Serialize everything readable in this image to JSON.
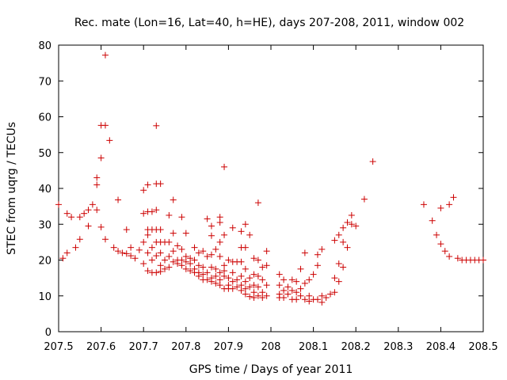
{
  "chart_data": {
    "type": "scatter",
    "title": "Rec. mate (Lon=16, Lat=40, h=HE), days 207-208, 2011, window 002",
    "xlabel": "GPS time / Days of year 2011",
    "ylabel": "STEC from uqrg / TECUs",
    "xlim": [
      207.5,
      208.5
    ],
    "ylim": [
      0,
      80
    ],
    "xticks": [
      207.5,
      207.6,
      207.7,
      207.8,
      207.9,
      208,
      208.1,
      208.2,
      208.3,
      208.4,
      208.5
    ],
    "xtick_labels": [
      "207.5",
      "207.6",
      "207.7",
      "207.8",
      "207.9",
      "208",
      "208.1",
      "208.2",
      "208.3",
      "208.4",
      "208.5"
    ],
    "yticks": [
      0,
      10,
      20,
      30,
      40,
      50,
      60,
      70,
      80
    ],
    "ytick_labels": [
      "0",
      "10",
      "20",
      "30",
      "40",
      "50",
      "60",
      "70",
      "80"
    ],
    "marker": "+",
    "color": "#cc0000",
    "series": [
      {
        "name": "STEC",
        "points": [
          [
            207.5,
            35.5
          ],
          [
            207.51,
            20.5
          ],
          [
            207.52,
            33.0
          ],
          [
            207.52,
            22.0
          ],
          [
            207.53,
            32.0
          ],
          [
            207.54,
            23.5
          ],
          [
            207.55,
            32.0
          ],
          [
            207.55,
            25.8
          ],
          [
            207.56,
            33.0
          ],
          [
            207.57,
            29.5
          ],
          [
            207.57,
            34.0
          ],
          [
            207.58,
            35.5
          ],
          [
            207.59,
            43.0
          ],
          [
            207.59,
            41.0
          ],
          [
            207.59,
            34.0
          ],
          [
            207.6,
            57.6
          ],
          [
            207.6,
            48.5
          ],
          [
            207.6,
            29.2
          ],
          [
            207.61,
            57.6
          ],
          [
            207.61,
            77.2
          ],
          [
            207.61,
            25.8
          ],
          [
            207.62,
            53.4
          ],
          [
            207.63,
            23.5
          ],
          [
            207.64,
            36.8
          ],
          [
            207.64,
            22.5
          ],
          [
            207.65,
            22.0
          ],
          [
            207.66,
            28.5
          ],
          [
            207.66,
            21.8
          ],
          [
            207.67,
            23.5
          ],
          [
            207.67,
            21.2
          ],
          [
            207.68,
            20.5
          ],
          [
            207.69,
            22.8
          ],
          [
            207.7,
            33.0
          ],
          [
            207.7,
            39.5
          ],
          [
            207.7,
            25.0
          ],
          [
            207.7,
            19.0
          ],
          [
            207.71,
            41.0
          ],
          [
            207.71,
            33.5
          ],
          [
            207.71,
            28.5
          ],
          [
            207.71,
            27.0
          ],
          [
            207.71,
            22.0
          ],
          [
            207.71,
            17.0
          ],
          [
            207.72,
            33.5
          ],
          [
            207.72,
            28.5
          ],
          [
            207.72,
            23.5
          ],
          [
            207.72,
            20.0
          ],
          [
            207.72,
            16.5
          ],
          [
            207.73,
            57.5
          ],
          [
            207.73,
            41.3
          ],
          [
            207.73,
            34.0
          ],
          [
            207.73,
            28.5
          ],
          [
            207.73,
            25.0
          ],
          [
            207.73,
            21.2
          ],
          [
            207.73,
            16.5
          ],
          [
            207.74,
            41.3
          ],
          [
            207.74,
            28.5
          ],
          [
            207.74,
            25.0
          ],
          [
            207.74,
            22.0
          ],
          [
            207.74,
            18.5
          ],
          [
            207.74,
            16.8
          ],
          [
            207.75,
            25.0
          ],
          [
            207.75,
            20.0
          ],
          [
            207.75,
            17.5
          ],
          [
            207.76,
            32.5
          ],
          [
            207.76,
            25.0
          ],
          [
            207.76,
            21.0
          ],
          [
            207.76,
            18.0
          ],
          [
            207.77,
            36.8
          ],
          [
            207.77,
            27.5
          ],
          [
            207.77,
            22.5
          ],
          [
            207.77,
            19.5
          ],
          [
            207.78,
            24.0
          ],
          [
            207.78,
            20.0
          ],
          [
            207.78,
            19.0
          ],
          [
            207.79,
            32.0
          ],
          [
            207.79,
            23.0
          ],
          [
            207.79,
            20.0
          ],
          [
            207.79,
            18.5
          ],
          [
            207.8,
            27.5
          ],
          [
            207.8,
            21.0
          ],
          [
            207.8,
            19.5
          ],
          [
            207.8,
            17.5
          ],
          [
            207.81,
            20.5
          ],
          [
            207.81,
            19.0
          ],
          [
            207.81,
            17.0
          ],
          [
            207.82,
            23.5
          ],
          [
            207.82,
            20.0
          ],
          [
            207.82,
            17.5
          ],
          [
            207.82,
            16.5
          ],
          [
            207.83,
            22.0
          ],
          [
            207.83,
            18.5
          ],
          [
            207.83,
            16.5
          ],
          [
            207.83,
            15.5
          ],
          [
            207.84,
            22.5
          ],
          [
            207.84,
            18.0
          ],
          [
            207.84,
            16.0
          ],
          [
            207.84,
            14.5
          ],
          [
            207.85,
            31.5
          ],
          [
            207.85,
            21.0
          ],
          [
            207.85,
            16.5
          ],
          [
            207.85,
            14.5
          ],
          [
            207.86,
            29.5
          ],
          [
            207.86,
            26.8
          ],
          [
            207.86,
            21.5
          ],
          [
            207.86,
            18.0
          ],
          [
            207.86,
            15.0
          ],
          [
            207.86,
            14.0
          ],
          [
            207.87,
            23.0
          ],
          [
            207.87,
            17.5
          ],
          [
            207.87,
            15.5
          ],
          [
            207.87,
            13.5
          ],
          [
            207.88,
            32.0
          ],
          [
            207.88,
            30.5
          ],
          [
            207.88,
            25.0
          ],
          [
            207.88,
            21.0
          ],
          [
            207.88,
            16.5
          ],
          [
            207.88,
            14.5
          ],
          [
            207.88,
            13.0
          ],
          [
            207.89,
            46.0
          ],
          [
            207.89,
            27.0
          ],
          [
            207.89,
            18.5
          ],
          [
            207.89,
            17.0
          ],
          [
            207.89,
            15.5
          ],
          [
            207.89,
            12.0
          ],
          [
            207.9,
            20.0
          ],
          [
            207.9,
            15.0
          ],
          [
            207.9,
            13.0
          ],
          [
            207.9,
            12.0
          ],
          [
            207.91,
            29.0
          ],
          [
            207.91,
            19.5
          ],
          [
            207.91,
            16.5
          ],
          [
            207.91,
            14.0
          ],
          [
            207.91,
            12.0
          ],
          [
            207.92,
            19.5
          ],
          [
            207.92,
            14.5
          ],
          [
            207.92,
            12.5
          ],
          [
            207.93,
            28.0
          ],
          [
            207.93,
            23.5
          ],
          [
            207.93,
            19.5
          ],
          [
            207.93,
            15.5
          ],
          [
            207.93,
            13.0
          ],
          [
            207.93,
            11.5
          ],
          [
            207.94,
            30.0
          ],
          [
            207.94,
            23.5
          ],
          [
            207.94,
            17.5
          ],
          [
            207.94,
            14.0
          ],
          [
            207.94,
            12.0
          ],
          [
            207.94,
            10.5
          ],
          [
            207.95,
            27.0
          ],
          [
            207.95,
            15.0
          ],
          [
            207.95,
            12.5
          ],
          [
            207.95,
            9.8
          ],
          [
            207.96,
            20.5
          ],
          [
            207.96,
            16.0
          ],
          [
            207.96,
            13.0
          ],
          [
            207.96,
            11.0
          ],
          [
            207.96,
            9.5
          ],
          [
            207.97,
            36.0
          ],
          [
            207.97,
            20.0
          ],
          [
            207.97,
            15.5
          ],
          [
            207.97,
            12.5
          ],
          [
            207.97,
            10.0
          ],
          [
            207.98,
            18.0
          ],
          [
            207.98,
            14.5
          ],
          [
            207.98,
            11.0
          ],
          [
            207.98,
            9.5
          ],
          [
            207.99,
            22.5
          ],
          [
            207.99,
            18.5
          ],
          [
            207.99,
            13.0
          ],
          [
            207.99,
            10.0
          ],
          [
            208.02,
            16.0
          ],
          [
            208.02,
            13.0
          ],
          [
            208.02,
            10.5
          ],
          [
            208.02,
            9.5
          ],
          [
            208.03,
            14.5
          ],
          [
            208.03,
            11.5
          ],
          [
            208.03,
            9.5
          ],
          [
            208.04,
            12.5
          ],
          [
            208.04,
            10.5
          ],
          [
            208.05,
            14.5
          ],
          [
            208.05,
            11.5
          ],
          [
            208.05,
            9.0
          ],
          [
            208.06,
            14.0
          ],
          [
            208.06,
            11.0
          ],
          [
            208.06,
            9.0
          ],
          [
            208.07,
            17.5
          ],
          [
            208.07,
            12.0
          ],
          [
            208.07,
            10.0
          ],
          [
            208.08,
            22.0
          ],
          [
            208.08,
            13.5
          ],
          [
            208.08,
            9.0
          ],
          [
            208.09,
            14.5
          ],
          [
            208.09,
            10.0
          ],
          [
            208.09,
            8.5
          ],
          [
            208.1,
            16.0
          ],
          [
            208.1,
            9.0
          ],
          [
            208.11,
            21.5
          ],
          [
            208.11,
            18.5
          ],
          [
            208.11,
            9.0
          ],
          [
            208.12,
            23.0
          ],
          [
            208.12,
            10.0
          ],
          [
            208.12,
            8.2
          ],
          [
            208.13,
            9.5
          ],
          [
            208.14,
            10.5
          ],
          [
            208.15,
            25.5
          ],
          [
            208.15,
            15.0
          ],
          [
            208.15,
            11.0
          ],
          [
            208.16,
            27.0
          ],
          [
            208.16,
            19.0
          ],
          [
            208.16,
            14.0
          ],
          [
            208.17,
            29.0
          ],
          [
            208.17,
            25.0
          ],
          [
            208.17,
            18.0
          ],
          [
            208.18,
            30.5
          ],
          [
            208.18,
            23.5
          ],
          [
            208.19,
            32.5
          ],
          [
            208.19,
            30.0
          ],
          [
            208.2,
            29.5
          ],
          [
            208.22,
            37.0
          ],
          [
            208.24,
            47.5
          ],
          [
            208.36,
            35.5
          ],
          [
            208.38,
            31.0
          ],
          [
            208.39,
            27.0
          ],
          [
            208.4,
            34.5
          ],
          [
            208.4,
            24.5
          ],
          [
            208.41,
            22.5
          ],
          [
            208.42,
            35.5
          ],
          [
            208.42,
            21.0
          ],
          [
            208.43,
            37.5
          ],
          [
            208.44,
            20.5
          ],
          [
            208.45,
            20.0
          ],
          [
            208.46,
            20.0
          ],
          [
            208.47,
            20.0
          ],
          [
            208.48,
            20.0
          ],
          [
            208.49,
            20.0
          ],
          [
            208.5,
            20.0
          ]
        ]
      }
    ]
  }
}
